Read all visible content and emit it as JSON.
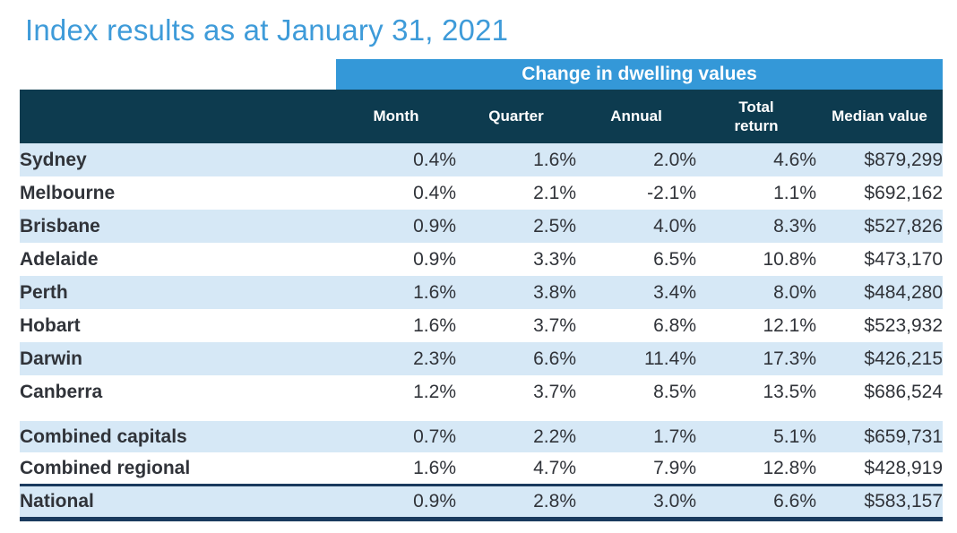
{
  "title": "Index results as at January 31, 2021",
  "colors": {
    "title_text": "#3e9bd9",
    "banner_bg": "#3498d8",
    "header_bg": "#0d3b4f",
    "row_stripe": "#d6e8f6",
    "rule_navy": "#1a3a5e",
    "body_text": "#303339"
  },
  "chart_data": {
    "type": "table",
    "title": "Index results as at January 31, 2021",
    "banner": "Change in dwelling values",
    "columns": [
      "Month",
      "Quarter",
      "Annual",
      "Total\nreturn",
      "Median value"
    ],
    "rows": [
      {
        "name": "Sydney",
        "month": "0.4%",
        "quarter": "1.6%",
        "annual": "2.0%",
        "total_return": "4.6%",
        "median_value": "$879,299",
        "group": "capital"
      },
      {
        "name": "Melbourne",
        "month": "0.4%",
        "quarter": "2.1%",
        "annual": "-2.1%",
        "total_return": "1.1%",
        "median_value": "$692,162",
        "group": "capital"
      },
      {
        "name": "Brisbane",
        "month": "0.9%",
        "quarter": "2.5%",
        "annual": "4.0%",
        "total_return": "8.3%",
        "median_value": "$527,826",
        "group": "capital"
      },
      {
        "name": "Adelaide",
        "month": "0.9%",
        "quarter": "3.3%",
        "annual": "6.5%",
        "total_return": "10.8%",
        "median_value": "$473,170",
        "group": "capital"
      },
      {
        "name": "Perth",
        "month": "1.6%",
        "quarter": "3.8%",
        "annual": "3.4%",
        "total_return": "8.0%",
        "median_value": "$484,280",
        "group": "capital"
      },
      {
        "name": "Hobart",
        "month": "1.6%",
        "quarter": "3.7%",
        "annual": "6.8%",
        "total_return": "12.1%",
        "median_value": "$523,932",
        "group": "capital"
      },
      {
        "name": "Darwin",
        "month": "2.3%",
        "quarter": "6.6%",
        "annual": "11.4%",
        "total_return": "17.3%",
        "median_value": "$426,215",
        "group": "capital"
      },
      {
        "name": "Canberra",
        "month": "1.2%",
        "quarter": "3.7%",
        "annual": "8.5%",
        "total_return": "13.5%",
        "median_value": "$686,524",
        "group": "capital"
      },
      {
        "name": "Combined capitals",
        "month": "0.7%",
        "quarter": "2.2%",
        "annual": "1.7%",
        "total_return": "5.1%",
        "median_value": "$659,731",
        "group": "combined"
      },
      {
        "name": "Combined regional",
        "month": "1.6%",
        "quarter": "4.7%",
        "annual": "7.9%",
        "total_return": "12.8%",
        "median_value": "$428,919",
        "group": "combined"
      },
      {
        "name": "National",
        "month": "0.9%",
        "quarter": "2.8%",
        "annual": "3.0%",
        "total_return": "6.6%",
        "median_value": "$583,157",
        "group": "national"
      }
    ]
  }
}
